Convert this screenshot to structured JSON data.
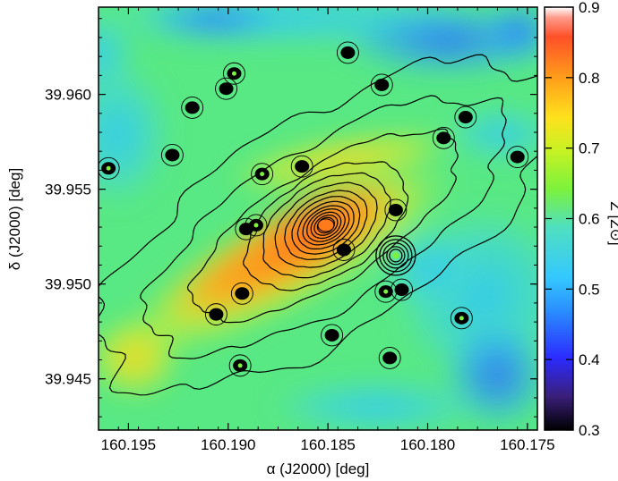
{
  "chart_data": {
    "type": "heatmap",
    "xlabel": "α (J2000) [deg]",
    "ylabel": "δ (J2000) [deg]",
    "colorbar_label": "Z [Z⊙]",
    "xlim": [
      160.1965,
      160.1745
    ],
    "ylim": [
      39.9423,
      39.9646
    ],
    "x_ticks": [
      160.195,
      160.19,
      160.185,
      160.18,
      160.175
    ],
    "x_tick_labels": [
      "160.195",
      "160.190",
      "160.185",
      "160.180",
      "160.175"
    ],
    "y_ticks": [
      39.945,
      39.95,
      39.955,
      39.96
    ],
    "y_tick_labels": [
      "39.945",
      "39.950",
      "39.955",
      "39.960"
    ],
    "colorbar_range": [
      0.3,
      0.9
    ],
    "colorbar_ticks": [
      0.3,
      0.4,
      0.5,
      0.6,
      0.7,
      0.8,
      0.9
    ],
    "colorbar_tick_labels": [
      "0.3",
      "0.4",
      "0.5",
      "0.6",
      "0.7",
      "0.8",
      "0.9"
    ],
    "colormap": [
      "#000000",
      "#2b2bff",
      "#34c8ff",
      "#7cf23c",
      "#ffe11c",
      "#ff7a1a",
      "#ff5028",
      "#ffffff"
    ],
    "contour_color": "#000000",
    "galaxy_center": {
      "ra": 160.1851,
      "dec": 39.9531
    },
    "galaxy_position_angle_deg": 32,
    "point_sources": [
      {
        "ra": 160.1883,
        "dec": 39.9558
      },
      {
        "ra": 160.1863,
        "dec": 39.9562
      },
      {
        "ra": 160.1823,
        "dec": 39.9605
      },
      {
        "ra": 160.1901,
        "dec": 39.9603
      },
      {
        "ra": 160.1897,
        "dec": 39.9611
      },
      {
        "ra": 160.1918,
        "dec": 39.9593
      },
      {
        "ra": 160.1928,
        "dec": 39.9568
      },
      {
        "ra": 160.1891,
        "dec": 39.9529
      },
      {
        "ra": 160.1886,
        "dec": 39.9531
      },
      {
        "ra": 160.1893,
        "dec": 39.9495
      },
      {
        "ra": 160.1906,
        "dec": 39.9484
      },
      {
        "ra": 160.1816,
        "dec": 39.9515
      },
      {
        "ra": 160.1821,
        "dec": 39.9496
      },
      {
        "ra": 160.1813,
        "dec": 39.9497
      },
      {
        "ra": 160.1848,
        "dec": 39.9473
      },
      {
        "ra": 160.1819,
        "dec": 39.9461
      },
      {
        "ra": 160.1894,
        "dec": 39.9457
      },
      {
        "ra": 160.1781,
        "dec": 39.9588
      },
      {
        "ra": 160.1755,
        "dec": 39.9567
      },
      {
        "ra": 160.1792,
        "dec": 39.9577
      },
      {
        "ra": 160.1783,
        "dec": 39.9482
      },
      {
        "ra": 160.1816,
        "dec": 39.9539
      },
      {
        "ra": 160.1842,
        "dec": 39.9518
      },
      {
        "ra": 160.184,
        "dec": 39.9622
      },
      {
        "ra": 160.196,
        "dec": 39.9561
      }
    ]
  }
}
